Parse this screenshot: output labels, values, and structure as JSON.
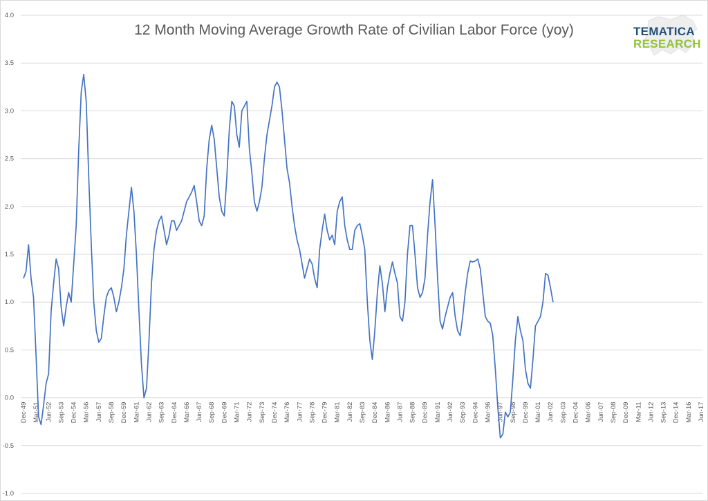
{
  "chart_data": {
    "type": "line",
    "title": "12 Month Moving Average Growth Rate of Civilian Labor Force (yoy)",
    "xlabel": "",
    "ylabel": "",
    "ylim": [
      -1.0,
      4.0
    ],
    "yticks": [
      "-1.0",
      "-0.5",
      "0.0",
      "0.5",
      "1.0",
      "1.5",
      "2.0",
      "2.5",
      "3.0",
      "3.5",
      "4.0"
    ],
    "xticks": [
      "Dec-49",
      "Mar-51",
      "Jun-52",
      "Sep-53",
      "Dec-54",
      "Mar-56",
      "Jun-57",
      "Sep-58",
      "Dec-59",
      "Mar-61",
      "Jun-62",
      "Sep-63",
      "Dec-64",
      "Mar-66",
      "Jun-67",
      "Sep-68",
      "Dec-69",
      "Mar-71",
      "Jun-72",
      "Sep-73",
      "Dec-74",
      "Mar-76",
      "Jun-77",
      "Sep-78",
      "Dec-79",
      "Mar-81",
      "Jun-82",
      "Sep-83",
      "Dec-84",
      "Mar-86",
      "Jun-87",
      "Sep-88",
      "Dec-89",
      "Mar-91",
      "Jun-92",
      "Sep-93",
      "Dec-94",
      "Mar-96",
      "Jun-97",
      "Sep-98",
      "Dec-99",
      "Mar-01",
      "Jun-02",
      "Sep-03",
      "Dec-04",
      "Mar-06",
      "Jun-07",
      "Sep-08",
      "Dec-09",
      "Mar-11",
      "Jun-12",
      "Sep-13",
      "Dec-14",
      "Mar-16",
      "Jun-17"
    ],
    "grid": true,
    "line_color": "#4472c4",
    "series": [
      {
        "points": [
          [
            "1949-12",
            1.25
          ],
          [
            "1950-03",
            1.32
          ],
          [
            "1950-06",
            1.6
          ],
          [
            "1950-09",
            1.25
          ],
          [
            "1950-12",
            1.05
          ],
          [
            "1951-03",
            0.45
          ],
          [
            "1951-06",
            -0.2
          ],
          [
            "1951-09",
            -0.28
          ],
          [
            "1951-12",
            -0.08
          ],
          [
            "1952-03",
            0.15
          ],
          [
            "1952-06",
            0.25
          ],
          [
            "1952-09",
            0.9
          ],
          [
            "1952-12",
            1.2
          ],
          [
            "1953-03",
            1.45
          ],
          [
            "1953-06",
            1.35
          ],
          [
            "1953-09",
            0.95
          ],
          [
            "1953-12",
            0.75
          ],
          [
            "1954-03",
            0.95
          ],
          [
            "1954-06",
            1.1
          ],
          [
            "1954-09",
            1.0
          ],
          [
            "1954-12",
            1.4
          ],
          [
            "1955-03",
            1.8
          ],
          [
            "1955-06",
            2.6
          ],
          [
            "1955-09",
            3.2
          ],
          [
            "1955-12",
            3.38
          ],
          [
            "1956-03",
            3.1
          ],
          [
            "1956-06",
            2.3
          ],
          [
            "1956-09",
            1.6
          ],
          [
            "1956-12",
            1.0
          ],
          [
            "1957-03",
            0.7
          ],
          [
            "1957-06",
            0.58
          ],
          [
            "1957-09",
            0.62
          ],
          [
            "1957-12",
            0.85
          ],
          [
            "1958-03",
            1.05
          ],
          [
            "1958-06",
            1.12
          ],
          [
            "1958-09",
            1.15
          ],
          [
            "1958-12",
            1.05
          ],
          [
            "1959-03",
            0.9
          ],
          [
            "1959-06",
            1.0
          ],
          [
            "1959-09",
            1.15
          ],
          [
            "1959-12",
            1.35
          ],
          [
            "1960-03",
            1.7
          ],
          [
            "1960-06",
            1.95
          ],
          [
            "1960-09",
            2.2
          ],
          [
            "1960-12",
            1.95
          ],
          [
            "1961-03",
            1.5
          ],
          [
            "1961-06",
            0.9
          ],
          [
            "1961-09",
            0.35
          ],
          [
            "1961-12",
            0.0
          ],
          [
            "1962-03",
            0.1
          ],
          [
            "1962-06",
            0.6
          ],
          [
            "1962-09",
            1.2
          ],
          [
            "1962-12",
            1.55
          ],
          [
            "1963-03",
            1.75
          ],
          [
            "1963-06",
            1.85
          ],
          [
            "1963-09",
            1.9
          ],
          [
            "1963-12",
            1.75
          ],
          [
            "1964-03",
            1.6
          ],
          [
            "1964-06",
            1.7
          ],
          [
            "1964-09",
            1.85
          ],
          [
            "1964-12",
            1.85
          ],
          [
            "1965-03",
            1.75
          ],
          [
            "1965-06",
            1.8
          ],
          [
            "1965-09",
            1.85
          ],
          [
            "1965-12",
            1.95
          ],
          [
            "1966-03",
            2.05
          ],
          [
            "1966-06",
            2.1
          ],
          [
            "1966-09",
            2.15
          ],
          [
            "1966-12",
            2.22
          ],
          [
            "1967-03",
            2.05
          ],
          [
            "1967-06",
            1.85
          ],
          [
            "1967-09",
            1.8
          ],
          [
            "1967-12",
            1.9
          ],
          [
            "1968-03",
            2.4
          ],
          [
            "1968-06",
            2.7
          ],
          [
            "1968-09",
            2.85
          ],
          [
            "1968-12",
            2.7
          ],
          [
            "1969-03",
            2.4
          ],
          [
            "1969-06",
            2.1
          ],
          [
            "1969-09",
            1.95
          ],
          [
            "1969-12",
            1.9
          ],
          [
            "1970-03",
            2.3
          ],
          [
            "1970-06",
            2.8
          ],
          [
            "1970-09",
            3.1
          ],
          [
            "1970-12",
            3.05
          ],
          [
            "1971-03",
            2.75
          ],
          [
            "1971-06",
            2.62
          ],
          [
            "1971-09",
            3.0
          ],
          [
            "1971-12",
            3.05
          ],
          [
            "1972-03",
            3.1
          ],
          [
            "1972-06",
            2.6
          ],
          [
            "1972-09",
            2.35
          ],
          [
            "1972-12",
            2.05
          ],
          [
            "1973-03",
            1.95
          ],
          [
            "1973-06",
            2.05
          ],
          [
            "1973-09",
            2.2
          ],
          [
            "1973-12",
            2.5
          ],
          [
            "1974-03",
            2.75
          ],
          [
            "1974-06",
            2.9
          ],
          [
            "1974-09",
            3.05
          ],
          [
            "1974-12",
            3.25
          ],
          [
            "1975-03",
            3.3
          ],
          [
            "1975-06",
            3.25
          ],
          [
            "1975-09",
            3.0
          ],
          [
            "1975-12",
            2.7
          ],
          [
            "1976-03",
            2.4
          ],
          [
            "1976-06",
            2.25
          ],
          [
            "1976-09",
            2.0
          ],
          [
            "1976-12",
            1.8
          ],
          [
            "1977-03",
            1.65
          ],
          [
            "1977-06",
            1.55
          ],
          [
            "1977-09",
            1.4
          ],
          [
            "1977-12",
            1.25
          ],
          [
            "1978-03",
            1.35
          ],
          [
            "1978-06",
            1.45
          ],
          [
            "1978-09",
            1.4
          ],
          [
            "1978-12",
            1.25
          ],
          [
            "1979-03",
            1.15
          ],
          [
            "1979-06",
            1.55
          ],
          [
            "1979-09",
            1.75
          ],
          [
            "1979-12",
            1.92
          ],
          [
            "1980-03",
            1.75
          ],
          [
            "1980-06",
            1.65
          ],
          [
            "1980-09",
            1.7
          ],
          [
            "1980-12",
            1.6
          ],
          [
            "1981-03",
            1.95
          ],
          [
            "1981-06",
            2.05
          ],
          [
            "1981-09",
            2.1
          ],
          [
            "1981-12",
            1.8
          ],
          [
            "1982-03",
            1.65
          ],
          [
            "1982-06",
            1.55
          ],
          [
            "1982-09",
            1.55
          ],
          [
            "1982-12",
            1.75
          ],
          [
            "1983-03",
            1.8
          ],
          [
            "1983-06",
            1.82
          ],
          [
            "1983-09",
            1.7
          ],
          [
            "1983-12",
            1.55
          ],
          [
            "1984-03",
            1.0
          ],
          [
            "1984-06",
            0.6
          ],
          [
            "1984-09",
            0.4
          ],
          [
            "1984-12",
            0.7
          ],
          [
            "1985-03",
            1.1
          ],
          [
            "1985-06",
            1.38
          ],
          [
            "1985-09",
            1.2
          ],
          [
            "1985-12",
            0.9
          ],
          [
            "1986-03",
            1.15
          ],
          [
            "1986-06",
            1.3
          ],
          [
            "1986-09",
            1.42
          ],
          [
            "1986-12",
            1.3
          ],
          [
            "1987-03",
            1.2
          ],
          [
            "1987-06",
            0.85
          ],
          [
            "1987-09",
            0.8
          ],
          [
            "1987-12",
            1.0
          ],
          [
            "1988-03",
            1.5
          ],
          [
            "1988-06",
            1.8
          ],
          [
            "1988-09",
            1.8
          ],
          [
            "1988-12",
            1.5
          ],
          [
            "1989-03",
            1.15
          ],
          [
            "1989-06",
            1.05
          ],
          [
            "1989-09",
            1.1
          ],
          [
            "1989-12",
            1.25
          ],
          [
            "1990-03",
            1.7
          ],
          [
            "1990-06",
            2.05
          ],
          [
            "1990-09",
            2.28
          ],
          [
            "1990-12",
            1.8
          ],
          [
            "1991-03",
            1.25
          ],
          [
            "1991-06",
            0.8
          ],
          [
            "1991-09",
            0.72
          ],
          [
            "1991-12",
            0.85
          ],
          [
            "1992-03",
            0.95
          ],
          [
            "1992-06",
            1.05
          ],
          [
            "1992-09",
            1.1
          ],
          [
            "1992-12",
            0.85
          ],
          [
            "1993-03",
            0.7
          ],
          [
            "1993-06",
            0.65
          ],
          [
            "1993-09",
            0.85
          ],
          [
            "1993-12",
            1.1
          ],
          [
            "1994-03",
            1.3
          ],
          [
            "1994-06",
            1.43
          ],
          [
            "1994-09",
            1.42
          ],
          [
            "1994-12",
            1.43
          ],
          [
            "1995-03",
            1.45
          ],
          [
            "1995-06",
            1.35
          ],
          [
            "1995-09",
            1.1
          ],
          [
            "1995-12",
            0.85
          ],
          [
            "1996-03",
            0.8
          ],
          [
            "1996-06",
            0.78
          ],
          [
            "1996-09",
            0.65
          ],
          [
            "1996-12",
            0.3
          ],
          [
            "1997-03",
            -0.1
          ],
          [
            "1997-06",
            -0.42
          ],
          [
            "1997-09",
            -0.38
          ],
          [
            "1997-12",
            -0.15
          ],
          [
            "1998-03",
            -0.2
          ],
          [
            "1998-06",
            -0.15
          ],
          [
            "1998-09",
            0.2
          ],
          [
            "1998-12",
            0.6
          ],
          [
            "1999-03",
            0.85
          ],
          [
            "1999-06",
            0.7
          ],
          [
            "1999-09",
            0.6
          ],
          [
            "1999-12",
            0.3
          ],
          [
            "2000-03",
            0.15
          ],
          [
            "2000-06",
            0.1
          ],
          [
            "2000-09",
            0.4
          ],
          [
            "2000-12",
            0.75
          ],
          [
            "2001-03",
            0.8
          ],
          [
            "2001-06",
            0.85
          ],
          [
            "2001-09",
            1.0
          ],
          [
            "2001-12",
            1.3
          ],
          [
            "2002-03",
            1.28
          ],
          [
            "2002-06",
            1.15
          ],
          [
            "2002-09",
            1.0
          ]
        ]
      }
    ]
  },
  "logo": {
    "line1": "TEMATICA",
    "line2": "RESEARCH",
    "color1": "#1f4e79",
    "color2": "#92c13c"
  }
}
